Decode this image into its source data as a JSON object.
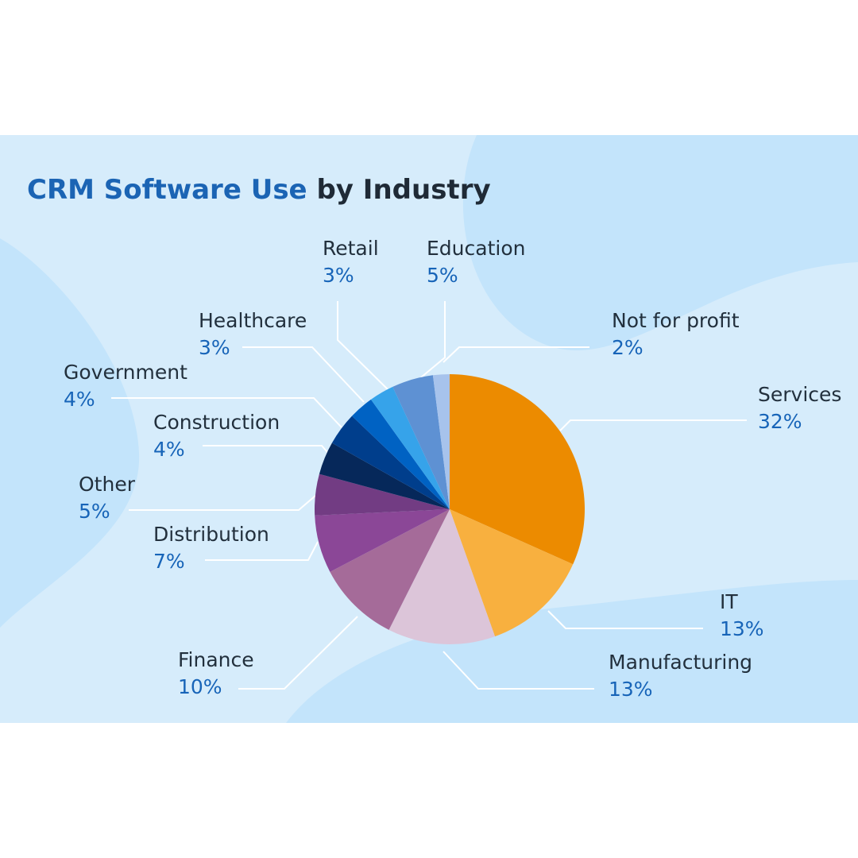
{
  "chart_data": {
    "type": "pie",
    "title": {
      "highlight": "CRM Software Use",
      "rest": " by Industry"
    },
    "unit": "%",
    "colors": {
      "title_accent": "#1b64b4",
      "title_dark": "#1f2a36",
      "label_value": "#1764b8",
      "background": "#d6ecfb"
    },
    "slices": [
      {
        "label": "Services",
        "value": 32,
        "color": "#ec8b00"
      },
      {
        "label": "IT",
        "value": 13,
        "color": "#f8b03f"
      },
      {
        "label": "Manufacturing",
        "value": 13,
        "color": "#dcc5d9"
      },
      {
        "label": "Finance",
        "value": 10,
        "color": "#a56b99"
      },
      {
        "label": "Distribution",
        "value": 7,
        "color": "#8b4797"
      },
      {
        "label": "Other",
        "value": 5,
        "color": "#723c83"
      },
      {
        "label": "Construction",
        "value": 4,
        "color": "#06285a"
      },
      {
        "label": "Government",
        "value": 4,
        "color": "#003e8c"
      },
      {
        "label": "Healthcare",
        "value": 3,
        "color": "#0062c3"
      },
      {
        "label": "Retail",
        "value": 3,
        "color": "#36a3ea"
      },
      {
        "label": "Education",
        "value": 5,
        "color": "#5e91d3"
      },
      {
        "label": "Not for profit",
        "value": 2,
        "color": "#a7c3ec"
      }
    ]
  }
}
